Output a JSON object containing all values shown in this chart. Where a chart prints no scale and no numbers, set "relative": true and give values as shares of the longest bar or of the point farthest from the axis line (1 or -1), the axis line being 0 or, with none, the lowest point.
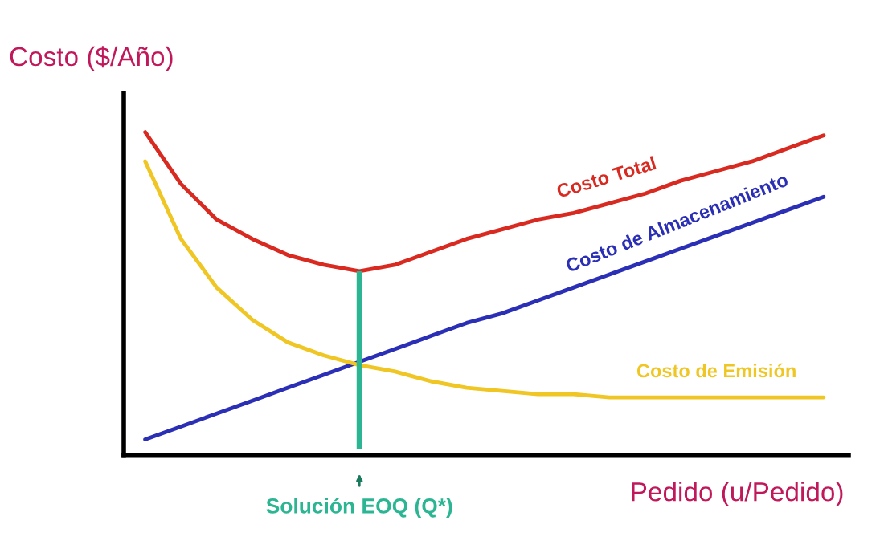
{
  "chart_data": {
    "type": "line",
    "relative": true,
    "ylabel": "Costo ($/Año)",
    "xlabel": "Pedido (u/Pedido)",
    "categories": [
      null,
      null,
      null,
      null,
      null,
      null,
      null,
      null,
      null,
      null,
      null,
      null,
      null,
      null,
      null,
      null,
      null,
      null,
      null,
      null
    ],
    "series": [
      {
        "name": "Costo Total",
        "color": "#d82a20",
        "values": [
          1,
          0.84,
          0.73,
          0.67,
          0.62,
          0.59,
          0.57,
          0.59,
          0.63,
          0.67,
          0.7,
          0.73,
          0.75,
          0.78,
          0.81,
          0.85,
          0.88,
          0.91,
          0.95,
          0.99
        ]
      },
      {
        "name": "Costo de Almacenamiento",
        "color": "#2a2fb5",
        "values": [
          0.05,
          0.09,
          0.13,
          0.17,
          0.21,
          0.25,
          0.29,
          0.33,
          0.37,
          0.41,
          0.44,
          0.48,
          0.52,
          0.56,
          0.6,
          0.64,
          0.68,
          0.72,
          0.76,
          0.8
        ]
      },
      {
        "name": "Costo de Emisión",
        "color": "#efc623",
        "values": [
          0.91,
          0.67,
          0.52,
          0.42,
          0.35,
          0.31,
          0.28,
          0.26,
          0.23,
          0.21,
          0.2,
          0.19,
          0.19,
          0.18,
          0.18,
          0.18,
          0.18,
          0.18,
          0.18,
          0.18
        ]
      }
    ],
    "annotations": [
      "Solución EOQ (Q*)"
    ],
    "marker": "none",
    "line_style": "solid",
    "grid": false
  }
}
